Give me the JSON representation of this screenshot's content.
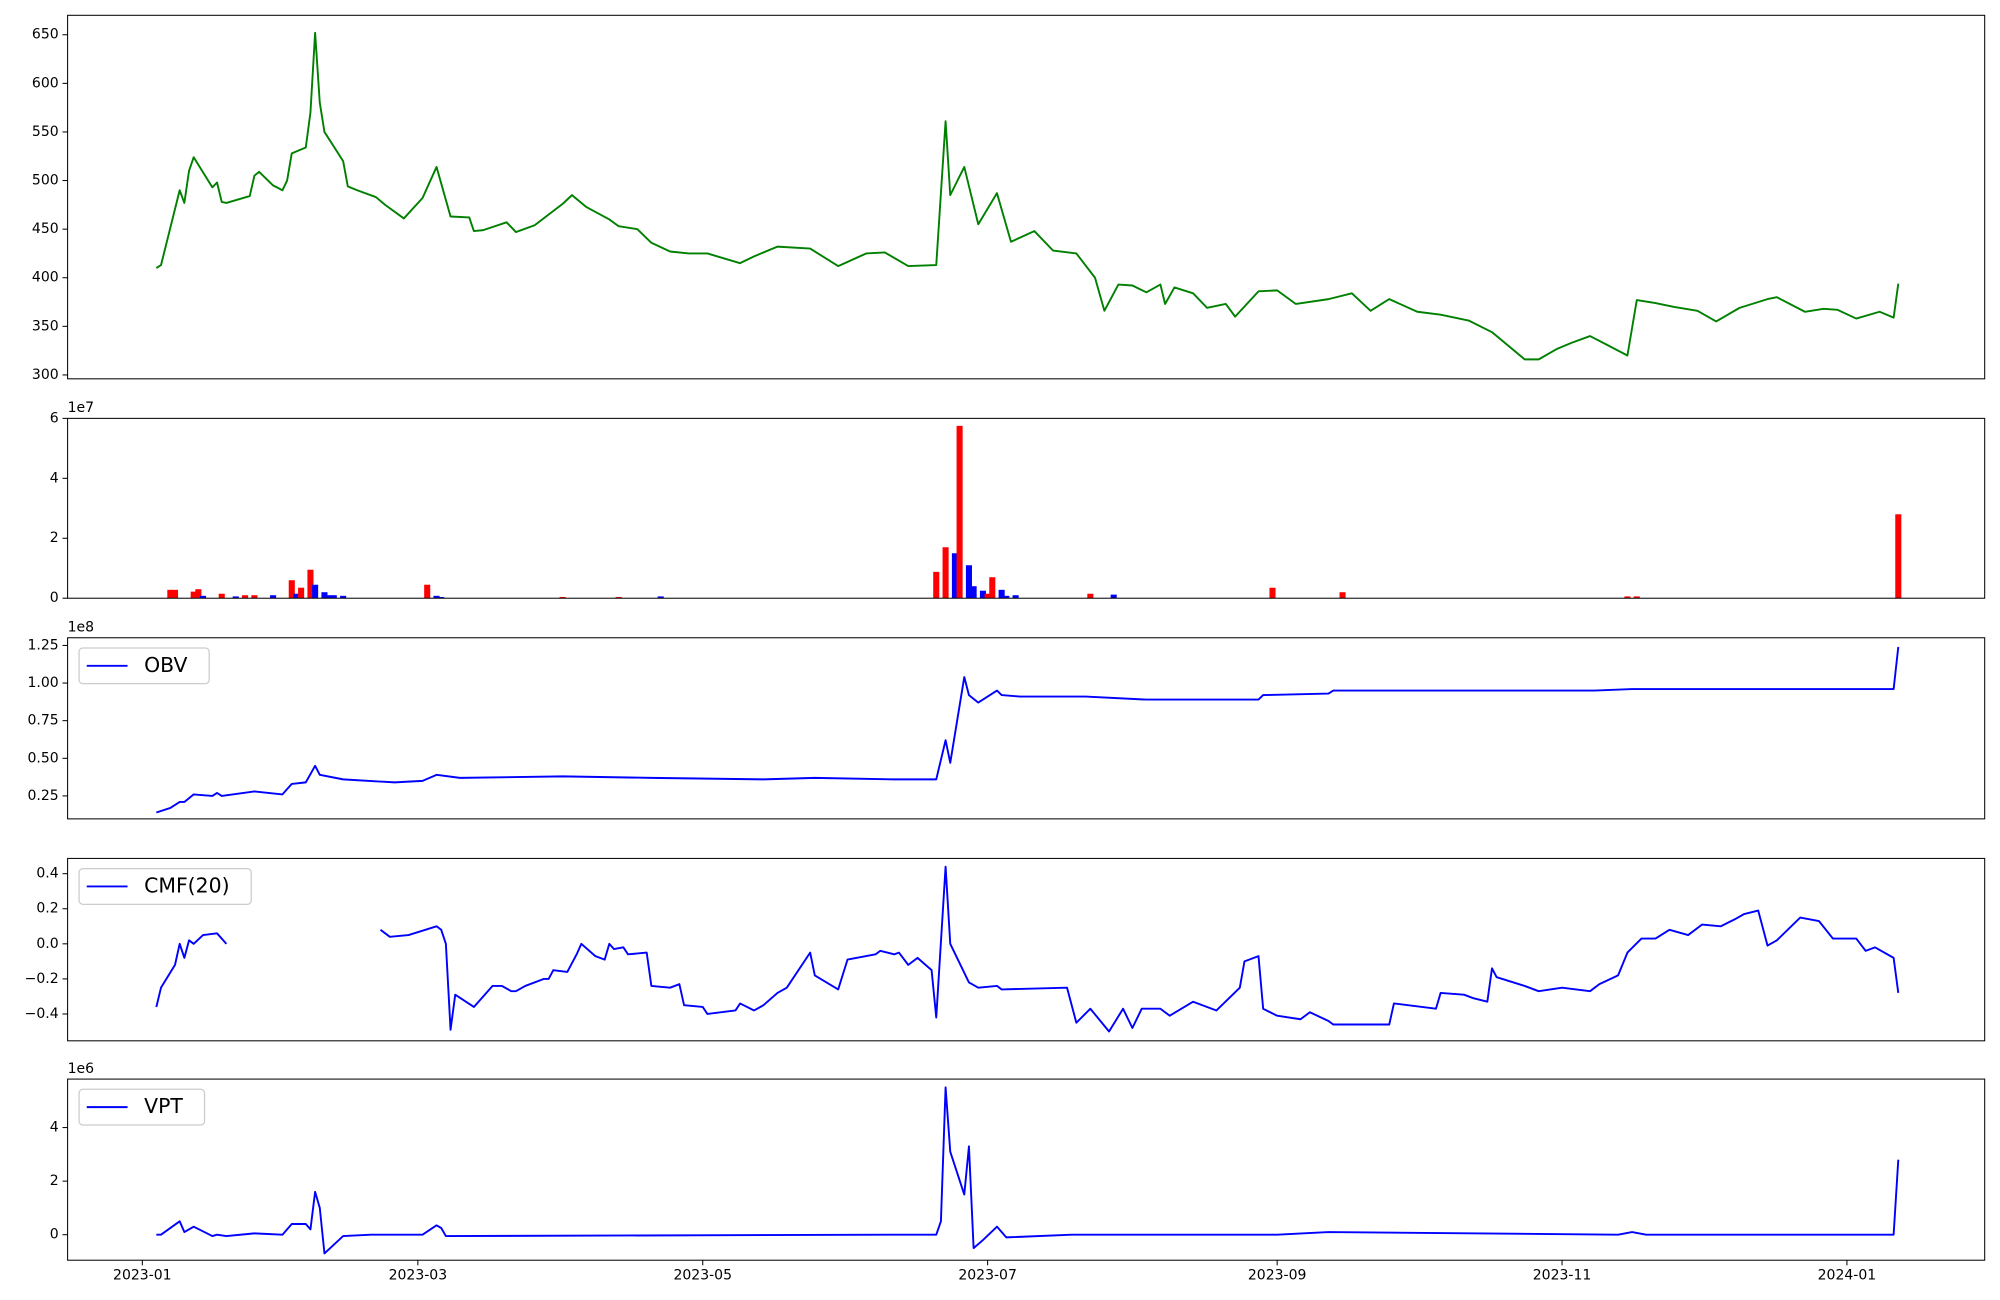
{
  "chart_data": [
    {
      "type": "line",
      "color": "#008000",
      "xlim": [
        -16,
        394.5
      ],
      "ylim": [
        296,
        670
      ],
      "yticks": [
        300,
        350,
        400,
        450,
        500,
        550,
        600,
        650
      ],
      "x": [
        3,
        4,
        8,
        9,
        10,
        11,
        15,
        16,
        17,
        18,
        23,
        24,
        25,
        28,
        30,
        31,
        32,
        35,
        36,
        37,
        38,
        39,
        43,
        44,
        46,
        50,
        52,
        56,
        60,
        63,
        66,
        70,
        71,
        73,
        78,
        80,
        84,
        90,
        92,
        95,
        100,
        102,
        106,
        109,
        113,
        117,
        121,
        128,
        131,
        136,
        143,
        149,
        155,
        159,
        164,
        170,
        172,
        173,
        176,
        179,
        183,
        186,
        191,
        195,
        200,
        204,
        206,
        209,
        212,
        215,
        218,
        219,
        221,
        225,
        228,
        232,
        234,
        239,
        243,
        247,
        254,
        259,
        263,
        267,
        273,
        278,
        284,
        289,
        296,
        299,
        303,
        306,
        310,
        314,
        318,
        320,
        324,
        328,
        333,
        337,
        342,
        348,
        350,
        356,
        360,
        363,
        367,
        372,
        375,
        376
      ],
      "values": [
        410,
        413,
        490,
        477,
        510,
        524,
        493,
        498,
        478,
        477,
        484,
        505,
        509,
        495,
        490,
        500,
        528,
        534,
        570,
        652,
        580,
        550,
        520,
        494,
        490,
        483,
        475,
        461,
        482,
        514,
        463,
        462,
        448,
        449,
        457,
        447,
        454,
        476,
        485,
        473,
        460,
        453,
        450,
        436,
        427,
        425,
        425,
        415,
        422,
        432,
        430,
        412,
        425,
        426,
        412,
        413,
        561,
        485,
        514,
        455,
        487,
        437,
        448,
        428,
        425,
        400,
        366,
        393,
        392,
        385,
        393,
        373,
        390,
        384,
        369,
        373,
        360,
        386,
        387,
        373,
        378,
        384,
        366,
        378,
        365,
        362,
        356,
        344,
        316,
        316,
        327,
        333,
        340,
        330,
        320,
        377,
        374,
        370,
        366,
        355,
        369,
        378,
        380,
        365,
        368,
        367,
        358,
        365,
        359,
        394
      ]
    },
    {
      "type": "bar",
      "y_scale_label": "1e7",
      "xlim": [
        -16,
        394.5
      ],
      "ylim": [
        0,
        6
      ],
      "yticks": [
        0,
        2,
        4,
        6
      ],
      "x": [
        6,
        7,
        11,
        12,
        13,
        17,
        20,
        22,
        24,
        28,
        32,
        33,
        34,
        36,
        37,
        39,
        40,
        41,
        43,
        61,
        63,
        64,
        90,
        102,
        111,
        170,
        172,
        174,
        175,
        177,
        178,
        180,
        181,
        182,
        184,
        185,
        187,
        203,
        208,
        242,
        257,
        318,
        320,
        376
      ],
      "values": [
        0.28,
        0.28,
        0.22,
        0.3,
        0.08,
        0.15,
        0.06,
        0.1,
        0.1,
        0.1,
        0.6,
        0.15,
        0.35,
        0.95,
        0.45,
        0.2,
        0.1,
        0.1,
        0.08,
        0.45,
        0.08,
        0.04,
        0.04,
        0.04,
        0.06,
        0.88,
        1.7,
        1.5,
        5.75,
        1.1,
        0.4,
        0.25,
        0.15,
        0.7,
        0.28,
        0.08,
        0.1,
        0.15,
        0.12,
        0.35,
        0.2,
        0.06,
        0.06,
        2.8
      ],
      "colors": [
        "#ff0000",
        "#ff0000",
        "#ff0000",
        "#ff0000",
        "#0000ff",
        "#ff0000",
        "#0000ff",
        "#ff0000",
        "#ff0000",
        "#0000ff",
        "#ff0000",
        "#0000ff",
        "#ff0000",
        "#ff0000",
        "#0000ff",
        "#0000ff",
        "#0000ff",
        "#0000ff",
        "#0000ff",
        "#ff0000",
        "#0000ff",
        "#0000ff",
        "#ff0000",
        "#ff0000",
        "#0000ff",
        "#ff0000",
        "#ff0000",
        "#0000ff",
        "#ff0000",
        "#0000ff",
        "#0000ff",
        "#0000ff",
        "#ff0000",
        "#ff0000",
        "#0000ff",
        "#0000ff",
        "#0000ff",
        "#ff0000",
        "#0000ff",
        "#ff0000",
        "#ff0000",
        "#ff0000",
        "#ff0000",
        "#ff0000"
      ]
    },
    {
      "type": "line",
      "y_scale_label": "1e8",
      "legend": "upper left",
      "xlim": [
        -16,
        394.5
      ],
      "ylim": [
        0.0975,
        1.301
      ],
      "yticks": [
        0.25,
        {
          "value": 0.5,
          "label": "0.50"
        },
        0.75,
        {
          "value": 1,
          "label": "1.00"
        },
        1.25
      ],
      "x": [
        3,
        6,
        8,
        9,
        11,
        15,
        16,
        17,
        24,
        30,
        32,
        35,
        37,
        38,
        43,
        54,
        60,
        63,
        68,
        90,
        109,
        133,
        144,
        161,
        170,
        172,
        173,
        176,
        177,
        179,
        183,
        184,
        188,
        202,
        215,
        239,
        240,
        254,
        255,
        270,
        311,
        319,
        352,
        375,
        376
      ],
      "series": [
        {
          "name": "OBV",
          "color": "#0000ff",
          "values": [
            0.14,
            0.17,
            0.21,
            0.21,
            0.26,
            0.25,
            0.27,
            0.25,
            0.28,
            0.26,
            0.33,
            0.34,
            0.45,
            0.39,
            0.36,
            0.34,
            0.35,
            0.39,
            0.37,
            0.38,
            0.37,
            0.36,
            0.37,
            0.36,
            0.36,
            0.62,
            0.47,
            1.04,
            0.92,
            0.87,
            0.95,
            0.92,
            0.91,
            0.91,
            0.89,
            0.89,
            0.92,
            0.93,
            0.95,
            0.95,
            0.95,
            0.96,
            0.96,
            0.96,
            1.24
          ]
        }
      ]
    },
    {
      "type": "line",
      "legend": "upper left",
      "xlim": [
        -16,
        394.5
      ],
      "ylim": [
        -0.553,
        0.487
      ],
      "yticks": [
        {
          "value": -0.4,
          "label": "−0.4"
        },
        {
          "value": -0.2,
          "label": "−0.2"
        },
        {
          "value": 0,
          "label": "0.0"
        },
        0.2,
        0.4
      ],
      "x": [
        3,
        4,
        7,
        8,
        9,
        10,
        11,
        13,
        16,
        18,
        34,
        51,
        53,
        57,
        63,
        64,
        65,
        66,
        67,
        71,
        75,
        77,
        79,
        80,
        82,
        86,
        87,
        88,
        91,
        93,
        94,
        97,
        99,
        100,
        101,
        103,
        104,
        108,
        109,
        113,
        115,
        116,
        120,
        121,
        127,
        128,
        131,
        133,
        136,
        138,
        142,
        143,
        144,
        149,
        151,
        157,
        158,
        161,
        162,
        164,
        166,
        169,
        170,
        172,
        173,
        177,
        179,
        183,
        184,
        198,
        200,
        203,
        207,
        210,
        212,
        214,
        218,
        220,
        225,
        230,
        235,
        236,
        239,
        240,
        243,
        248,
        250,
        254,
        255,
        267,
        268,
        277,
        278,
        283,
        285,
        288,
        289,
        290,
        296,
        299,
        304,
        310,
        312,
        316,
        318,
        321,
        324,
        327,
        331,
        334,
        338,
        341,
        343,
        346,
        348,
        350,
        355,
        359,
        362,
        367,
        369,
        371,
        375,
        376
      ],
      "series": [
        {
          "name": "CMF(20)",
          "color": "#0000ff",
          "values": [
            -0.36,
            -0.25,
            -0.12,
            0.0,
            -0.08,
            0.02,
            0.0,
            0.05,
            0.06,
            0.0,
            null,
            0.08,
            0.04,
            0.05,
            0.1,
            0.08,
            0.0,
            -0.49,
            -0.29,
            -0.36,
            -0.24,
            -0.24,
            -0.27,
            -0.27,
            -0.24,
            -0.2,
            -0.2,
            -0.15,
            -0.16,
            -0.06,
            0.0,
            -0.07,
            -0.09,
            0.0,
            -0.03,
            -0.02,
            -0.06,
            -0.05,
            -0.24,
            -0.25,
            -0.23,
            -0.35,
            -0.36,
            -0.4,
            -0.38,
            -0.34,
            -0.38,
            -0.35,
            -0.28,
            -0.25,
            -0.09,
            -0.05,
            -0.18,
            -0.26,
            -0.09,
            -0.06,
            -0.04,
            -0.06,
            -0.05,
            -0.12,
            -0.08,
            -0.15,
            -0.42,
            0.44,
            0.0,
            -0.22,
            -0.25,
            -0.24,
            -0.26,
            -0.25,
            -0.45,
            -0.37,
            -0.5,
            -0.37,
            -0.48,
            -0.37,
            -0.37,
            -0.41,
            -0.33,
            -0.38,
            -0.25,
            -0.1,
            -0.07,
            -0.37,
            -0.41,
            -0.43,
            -0.39,
            -0.44,
            -0.46,
            -0.46,
            -0.34,
            -0.37,
            -0.28,
            -0.29,
            -0.31,
            -0.33,
            -0.14,
            -0.19,
            -0.24,
            -0.27,
            -0.25,
            -0.27,
            -0.23,
            -0.18,
            -0.05,
            0.03,
            0.03,
            0.08,
            0.05,
            0.11,
            0.1,
            0.14,
            0.17,
            0.19,
            -0.01,
            0.02,
            0.15,
            0.13,
            0.03,
            0.03,
            -0.04,
            -0.02,
            -0.08,
            -0.28
          ]
        }
      ]
    },
    {
      "type": "line",
      "y_scale_label": "1e6",
      "legend": "upper left",
      "xlim": [
        -16,
        394.5
      ],
      "ylim": [
        -0.952,
        5.81
      ],
      "yticks": [
        0,
        2,
        4
      ],
      "xticks": [
        {
          "value": 0,
          "label": "2023-01"
        },
        {
          "value": 59,
          "label": "2023-03"
        },
        {
          "value": 120,
          "label": "2023-05"
        },
        {
          "value": 181,
          "label": "2023-07"
        },
        {
          "value": 243,
          "label": "2023-09"
        },
        {
          "value": 304,
          "label": "2023-11"
        },
        {
          "value": 365,
          "label": "2024-01"
        }
      ],
      "x": [
        3,
        4,
        8,
        9,
        11,
        15,
        16,
        18,
        24,
        30,
        32,
        35,
        36,
        37,
        38,
        39,
        43,
        49,
        60,
        63,
        64,
        65,
        161,
        170,
        171,
        172,
        173,
        176,
        177,
        178,
        180,
        183,
        185,
        199,
        243,
        254,
        316,
        319,
        322,
        375,
        376
      ],
      "series": [
        {
          "name": "VPT",
          "color": "#0000ff",
          "values": [
            0,
            0,
            0.5,
            0.1,
            0.3,
            -0.05,
            0,
            -0.05,
            0.05,
            0,
            0.4,
            0.4,
            0.2,
            1.6,
            1.0,
            -0.7,
            -0.05,
            0,
            0,
            0.35,
            0.25,
            -0.05,
            0,
            0,
            0.5,
            5.5,
            3.1,
            1.5,
            3.3,
            -0.5,
            -0.2,
            0.3,
            -0.1,
            0,
            0,
            0.1,
            0,
            0.1,
            0,
            0,
            2.8
          ]
        }
      ]
    }
  ]
}
